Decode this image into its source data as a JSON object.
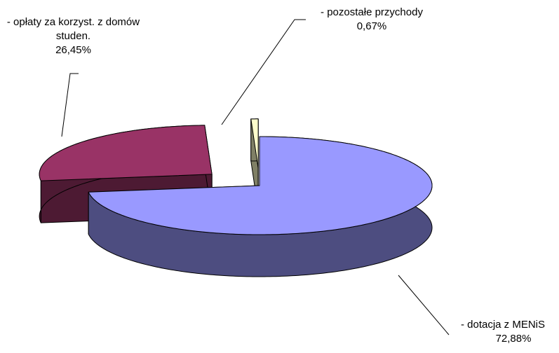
{
  "chart_data": {
    "type": "pie",
    "categories": [
      "- dotacja z MENiS",
      "- opłaty za korzyst. z domów studen.",
      "-  pozostałe przychody"
    ],
    "values": [
      72.88,
      26.45,
      0.67
    ],
    "value_labels": [
      "72,88%",
      "26,45%",
      "0,67%"
    ],
    "colors": [
      "#9999ff",
      "#993366",
      "#ffffcc"
    ]
  }
}
